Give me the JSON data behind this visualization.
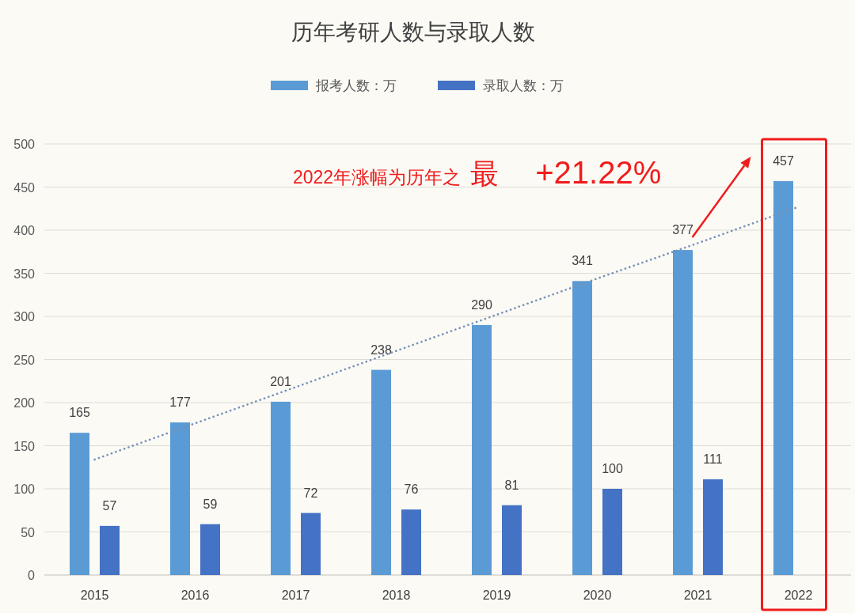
{
  "chart_data": {
    "type": "bar",
    "title": "历年考研人数与录取人数",
    "categories": [
      "2015",
      "2016",
      "2017",
      "2018",
      "2019",
      "2020",
      "2021",
      "2022"
    ],
    "series": [
      {
        "name": "报考人数：万",
        "color": "#5b9bd5",
        "values": [
          165,
          177,
          201,
          238,
          290,
          341,
          377,
          457
        ],
        "value_labels": [
          "165",
          "177",
          "201",
          "238",
          "290",
          "341",
          "377",
          "457"
        ]
      },
      {
        "name": "录取人数：万",
        "color": "#4472c4",
        "values": [
          57,
          59,
          72,
          76,
          81,
          100,
          111,
          null
        ],
        "value_labels": [
          "57",
          "59",
          "72",
          "76",
          "81",
          "100",
          "111",
          null
        ]
      },
      {
        "type": "line",
        "color": "#7590b8",
        "line_style": "dotted",
        "values": [
          134,
          176,
          218,
          260,
          302,
          344,
          385,
          427
        ]
      }
    ],
    "ylim": [
      0,
      500
    ],
    "yticks": [
      0,
      50,
      100,
      150,
      200,
      250,
      300,
      350,
      400,
      450,
      500
    ],
    "grid": "y",
    "legend": "top",
    "annotations": [
      "2022年涨幅为历年之",
      "最",
      "+21.22%"
    ]
  }
}
